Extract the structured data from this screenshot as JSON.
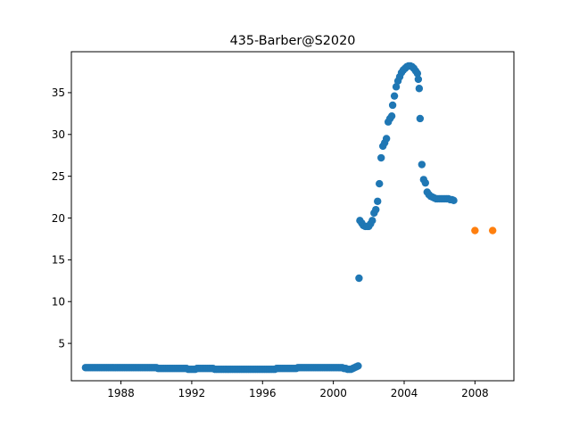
{
  "chart_data": {
    "type": "scatter",
    "title": "435-Barber@S2020",
    "xlabel": "",
    "ylabel": "",
    "xlim": [
      1985.2,
      2010.2
    ],
    "ylim": [
      0.53,
      39.9
    ],
    "xticks": [
      1988,
      1992,
      1996,
      2000,
      2004,
      2008
    ],
    "yticks": [
      5,
      10,
      15,
      20,
      25,
      30,
      35
    ],
    "grid": false,
    "colors": {
      "series_0": "#1f77b4",
      "series_1": "#ff7f0e"
    },
    "series": [
      {
        "points": [
          [
            1986.0,
            2.1
          ],
          [
            1986.1,
            2.1
          ],
          [
            1986.2,
            2.1
          ],
          [
            1986.3,
            2.1
          ],
          [
            1986.4,
            2.1
          ],
          [
            1986.5,
            2.1
          ],
          [
            1986.6,
            2.1
          ],
          [
            1986.7,
            2.1
          ],
          [
            1986.8,
            2.1
          ],
          [
            1986.9,
            2.1
          ],
          [
            1987.0,
            2.1
          ],
          [
            1987.1,
            2.1
          ],
          [
            1987.2,
            2.1
          ],
          [
            1987.3,
            2.1
          ],
          [
            1987.4,
            2.1
          ],
          [
            1987.5,
            2.1
          ],
          [
            1987.6,
            2.1
          ],
          [
            1987.7,
            2.1
          ],
          [
            1987.8,
            2.1
          ],
          [
            1987.9,
            2.1
          ],
          [
            1988.0,
            2.1
          ],
          [
            1988.1,
            2.1
          ],
          [
            1988.2,
            2.1
          ],
          [
            1988.3,
            2.1
          ],
          [
            1988.4,
            2.1
          ],
          [
            1988.5,
            2.1
          ],
          [
            1988.6,
            2.1
          ],
          [
            1988.7,
            2.1
          ],
          [
            1988.8,
            2.1
          ],
          [
            1988.9,
            2.1
          ],
          [
            1989.0,
            2.1
          ],
          [
            1989.1,
            2.1
          ],
          [
            1989.2,
            2.1
          ],
          [
            1989.3,
            2.1
          ],
          [
            1989.4,
            2.1
          ],
          [
            1989.5,
            2.1
          ],
          [
            1989.6,
            2.1
          ],
          [
            1989.7,
            2.1
          ],
          [
            1989.8,
            2.1
          ],
          [
            1989.9,
            2.1
          ],
          [
            1990.0,
            2.1
          ],
          [
            1990.1,
            2.0
          ],
          [
            1990.2,
            2.0
          ],
          [
            1990.3,
            2.0
          ],
          [
            1990.4,
            2.0
          ],
          [
            1990.5,
            2.0
          ],
          [
            1990.6,
            2.0
          ],
          [
            1990.7,
            2.0
          ],
          [
            1990.8,
            2.0
          ],
          [
            1990.9,
            2.0
          ],
          [
            1991.0,
            2.0
          ],
          [
            1991.1,
            2.0
          ],
          [
            1991.2,
            2.0
          ],
          [
            1991.3,
            2.0
          ],
          [
            1991.4,
            2.0
          ],
          [
            1991.5,
            2.0
          ],
          [
            1991.6,
            2.0
          ],
          [
            1991.7,
            2.0
          ],
          [
            1991.8,
            1.9
          ],
          [
            1991.9,
            1.9
          ],
          [
            1992.0,
            1.9
          ],
          [
            1992.1,
            1.9
          ],
          [
            1992.2,
            1.9
          ],
          [
            1992.3,
            2.0
          ],
          [
            1992.4,
            2.0
          ],
          [
            1992.5,
            2.0
          ],
          [
            1992.6,
            2.0
          ],
          [
            1992.7,
            2.0
          ],
          [
            1992.8,
            2.0
          ],
          [
            1992.9,
            2.0
          ],
          [
            1993.0,
            2.0
          ],
          [
            1993.1,
            2.0
          ],
          [
            1993.2,
            2.0
          ],
          [
            1993.3,
            1.9
          ],
          [
            1993.4,
            1.9
          ],
          [
            1993.5,
            1.9
          ],
          [
            1993.6,
            1.9
          ],
          [
            1993.7,
            1.9
          ],
          [
            1993.8,
            1.9
          ],
          [
            1993.9,
            1.9
          ],
          [
            1994.0,
            1.9
          ],
          [
            1994.1,
            1.9
          ],
          [
            1994.2,
            1.9
          ],
          [
            1994.3,
            1.9
          ],
          [
            1994.4,
            1.9
          ],
          [
            1994.5,
            1.9
          ],
          [
            1994.6,
            1.9
          ],
          [
            1994.7,
            1.9
          ],
          [
            1994.8,
            1.9
          ],
          [
            1994.9,
            1.9
          ],
          [
            1995.0,
            1.9
          ],
          [
            1995.1,
            1.9
          ],
          [
            1995.2,
            1.9
          ],
          [
            1995.3,
            1.9
          ],
          [
            1995.4,
            1.9
          ],
          [
            1995.5,
            1.9
          ],
          [
            1995.6,
            1.9
          ],
          [
            1995.7,
            1.9
          ],
          [
            1995.8,
            1.9
          ],
          [
            1995.9,
            1.9
          ],
          [
            1996.0,
            1.9
          ],
          [
            1996.1,
            1.9
          ],
          [
            1996.2,
            1.9
          ],
          [
            1996.3,
            1.9
          ],
          [
            1996.4,
            1.9
          ],
          [
            1996.5,
            1.9
          ],
          [
            1996.6,
            1.9
          ],
          [
            1996.7,
            1.9
          ],
          [
            1996.8,
            2.0
          ],
          [
            1996.9,
            2.0
          ],
          [
            1997.0,
            2.0
          ],
          [
            1997.1,
            2.0
          ],
          [
            1997.2,
            2.0
          ],
          [
            1997.3,
            2.0
          ],
          [
            1997.4,
            2.0
          ],
          [
            1997.5,
            2.0
          ],
          [
            1997.6,
            2.0
          ],
          [
            1997.7,
            2.0
          ],
          [
            1997.8,
            2.0
          ],
          [
            1997.9,
            2.0
          ],
          [
            1998.0,
            2.1
          ],
          [
            1998.1,
            2.1
          ],
          [
            1998.2,
            2.1
          ],
          [
            1998.3,
            2.1
          ],
          [
            1998.4,
            2.1
          ],
          [
            1998.5,
            2.1
          ],
          [
            1998.6,
            2.1
          ],
          [
            1998.7,
            2.1
          ],
          [
            1998.8,
            2.1
          ],
          [
            1998.9,
            2.1
          ],
          [
            1999.0,
            2.1
          ],
          [
            1999.1,
            2.1
          ],
          [
            1999.2,
            2.1
          ],
          [
            1999.3,
            2.1
          ],
          [
            1999.4,
            2.1
          ],
          [
            1999.5,
            2.1
          ],
          [
            1999.6,
            2.1
          ],
          [
            1999.7,
            2.1
          ],
          [
            1999.8,
            2.1
          ],
          [
            1999.9,
            2.1
          ],
          [
            2000.0,
            2.1
          ],
          [
            2000.1,
            2.1
          ],
          [
            2000.2,
            2.1
          ],
          [
            2000.3,
            2.1
          ],
          [
            2000.4,
            2.1
          ],
          [
            2000.5,
            2.1
          ],
          [
            2000.6,
            2.0
          ],
          [
            2000.7,
            2.0
          ],
          [
            2000.8,
            1.9
          ],
          [
            2000.9,
            1.9
          ],
          [
            2001.0,
            1.9
          ],
          [
            2001.1,
            2.0
          ],
          [
            2001.2,
            2.1
          ],
          [
            2001.3,
            2.2
          ],
          [
            2001.4,
            2.3
          ],
          [
            2001.45,
            12.8
          ],
          [
            2001.5,
            19.7
          ],
          [
            2001.6,
            19.4
          ],
          [
            2001.7,
            19.1
          ],
          [
            2001.8,
            19.0
          ],
          [
            2001.9,
            19.0
          ],
          [
            2002.0,
            19.0
          ],
          [
            2002.1,
            19.3
          ],
          [
            2002.2,
            19.7
          ],
          [
            2002.3,
            20.6
          ],
          [
            2002.4,
            21.0
          ],
          [
            2002.5,
            22.0
          ],
          [
            2002.6,
            24.1
          ],
          [
            2002.7,
            27.2
          ],
          [
            2002.8,
            28.6
          ],
          [
            2002.9,
            29.0
          ],
          [
            2003.0,
            29.5
          ],
          [
            2003.1,
            31.5
          ],
          [
            2003.2,
            31.9
          ],
          [
            2003.3,
            32.2
          ],
          [
            2003.35,
            33.5
          ],
          [
            2003.45,
            34.6
          ],
          [
            2003.55,
            35.7
          ],
          [
            2003.65,
            36.4
          ],
          [
            2003.75,
            36.9
          ],
          [
            2003.85,
            37.4
          ],
          [
            2003.95,
            37.7
          ],
          [
            2004.05,
            37.9
          ],
          [
            2004.15,
            38.1
          ],
          [
            2004.25,
            38.2
          ],
          [
            2004.35,
            38.2
          ],
          [
            2004.45,
            38.1
          ],
          [
            2004.55,
            37.9
          ],
          [
            2004.65,
            37.6
          ],
          [
            2004.75,
            37.3
          ],
          [
            2004.8,
            36.6
          ],
          [
            2004.85,
            35.5
          ],
          [
            2004.9,
            31.9
          ],
          [
            2005.0,
            26.4
          ],
          [
            2005.1,
            24.6
          ],
          [
            2005.2,
            24.2
          ],
          [
            2005.3,
            23.1
          ],
          [
            2005.4,
            22.8
          ],
          [
            2005.5,
            22.6
          ],
          [
            2005.6,
            22.5
          ],
          [
            2005.7,
            22.4
          ],
          [
            2005.8,
            22.3
          ],
          [
            2005.9,
            22.3
          ],
          [
            2006.0,
            22.3
          ],
          [
            2006.1,
            22.3
          ],
          [
            2006.2,
            22.3
          ],
          [
            2006.3,
            22.3
          ],
          [
            2006.4,
            22.3
          ],
          [
            2006.5,
            22.3
          ],
          [
            2006.6,
            22.2
          ],
          [
            2006.7,
            22.2
          ],
          [
            2006.8,
            22.1
          ]
        ]
      },
      {
        "points": [
          [
            2008.0,
            18.5
          ],
          [
            2009.0,
            18.5
          ]
        ]
      }
    ]
  }
}
